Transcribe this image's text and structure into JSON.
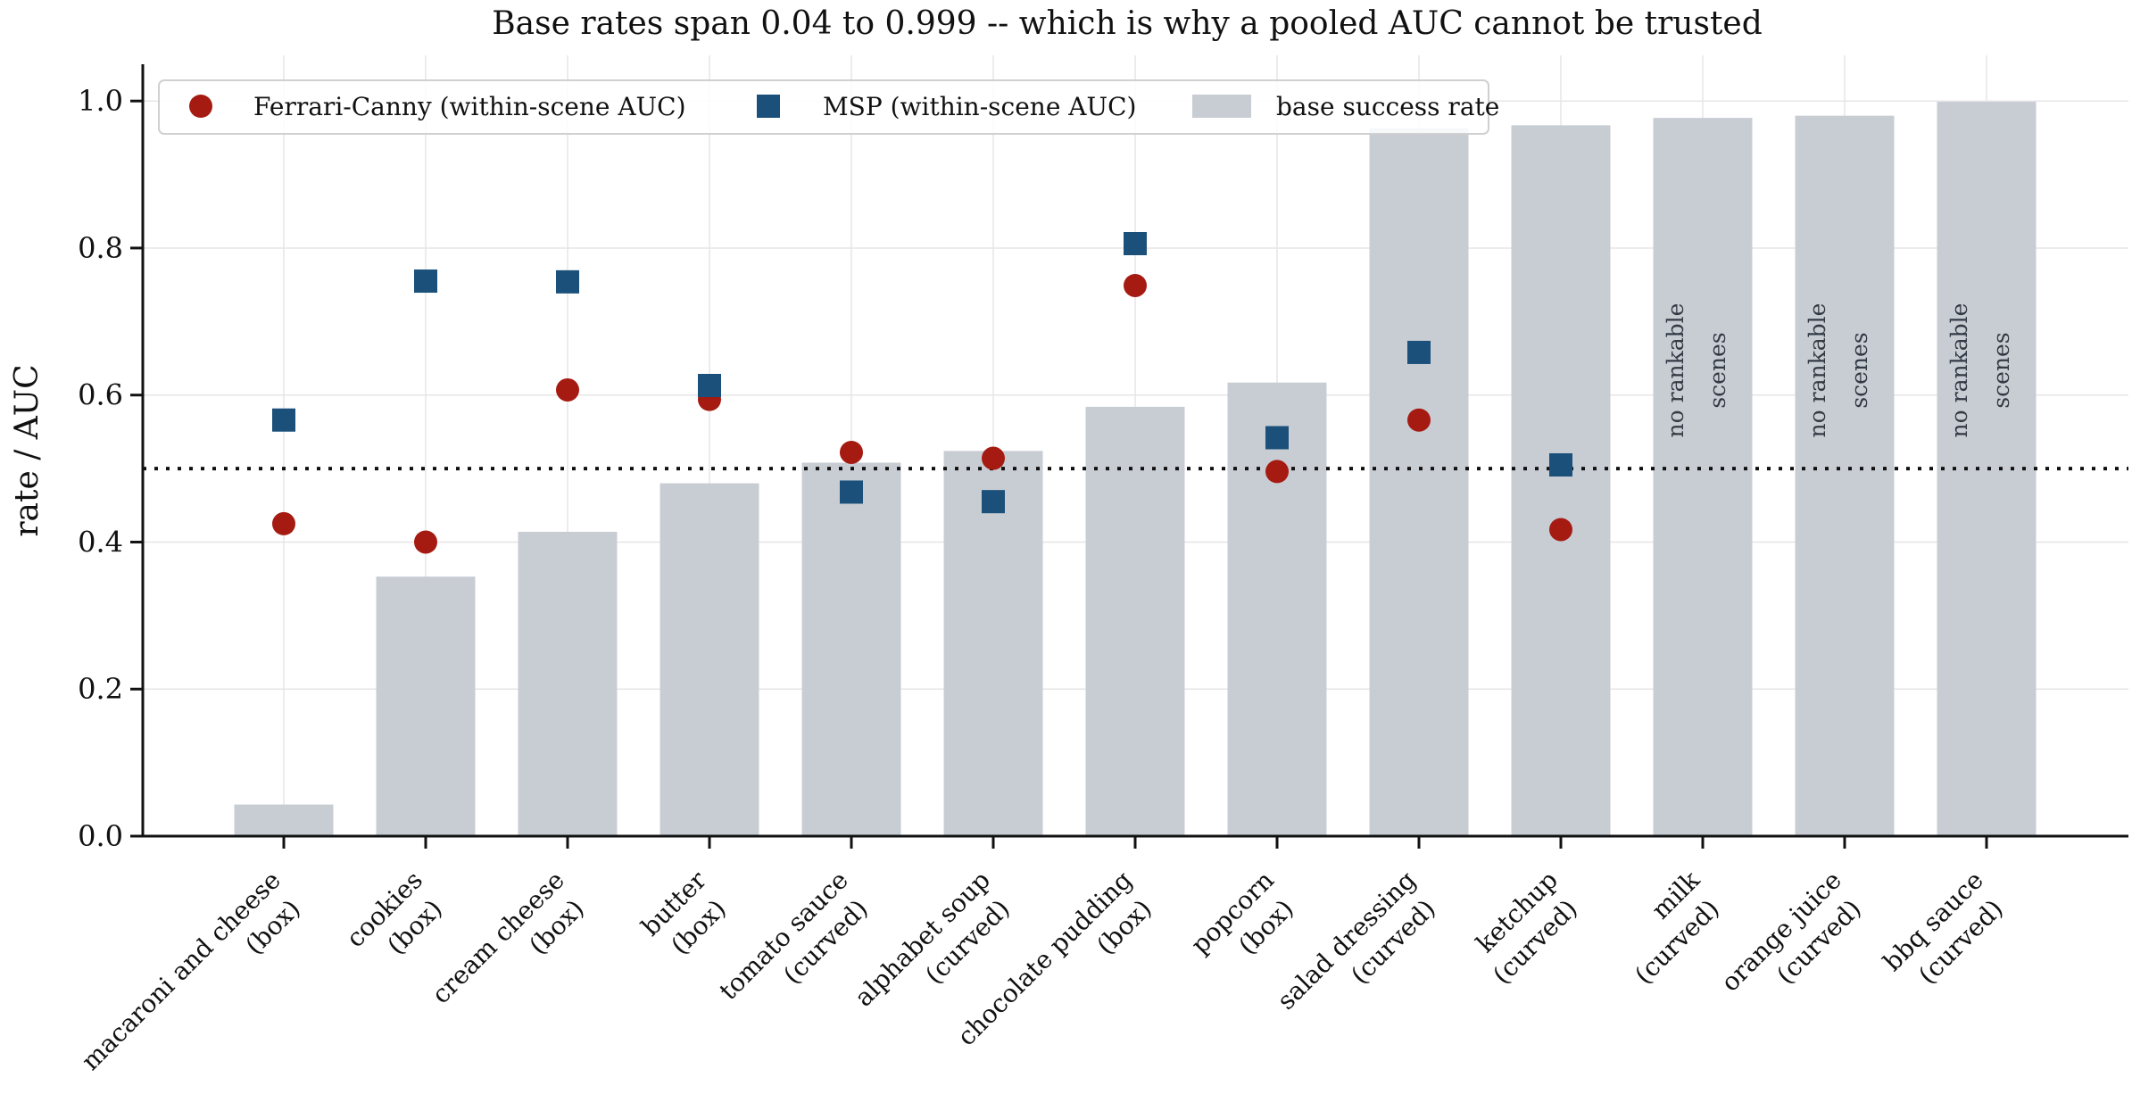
{
  "chart_data": {
    "type": "bar",
    "title": "Base rates span 0.04 to 0.999 -- which is why a pooled AUC cannot be trusted",
    "xlabel": "",
    "ylabel": "rate  / AUC",
    "ylim": [
      0.0,
      1.05
    ],
    "yticks": [
      "0.0",
      "0.2",
      "0.4",
      "0.6",
      "0.8",
      "1.0"
    ],
    "grid": true,
    "legend_position": "top-left",
    "reference_line": {
      "y": 0.5,
      "style": "dotted"
    },
    "categories": [
      [
        "macaroni and cheese",
        "(box)"
      ],
      [
        "cookies",
        "(box)"
      ],
      [
        "cream cheese",
        "(box)"
      ],
      [
        "butter",
        "(box)"
      ],
      [
        "tomato sauce",
        "(curved)"
      ],
      [
        "alphabet soup",
        "(curved)"
      ],
      [
        "chocolate pudding",
        "(box)"
      ],
      [
        "popcorn",
        "(box)"
      ],
      [
        "salad dressing",
        "(curved)"
      ],
      [
        "ketchup",
        "(curved)"
      ],
      [
        "milk",
        "(curved)"
      ],
      [
        "orange juice",
        "(curved)"
      ],
      [
        "bbq sauce",
        "(curved)"
      ]
    ],
    "series": [
      {
        "name": "base success rate",
        "kind": "bar",
        "color": "#c8cdd4",
        "values": [
          0.043,
          0.353,
          0.414,
          0.48,
          0.508,
          0.524,
          0.584,
          0.617,
          0.963,
          0.967,
          0.977,
          0.98,
          0.999
        ]
      },
      {
        "name": "Ferrari-Canny (within-scene AUC)",
        "kind": "scatter",
        "marker": "circle",
        "color": "#a51b12",
        "values": [
          0.425,
          0.4,
          0.607,
          0.594,
          0.522,
          0.514,
          0.749,
          0.496,
          0.566,
          0.417,
          null,
          null,
          null
        ]
      },
      {
        "name": "MSP (within-scene AUC)",
        "kind": "scatter",
        "marker": "square",
        "color": "#1a5079",
        "values": [
          0.566,
          0.755,
          0.754,
          0.613,
          0.468,
          0.455,
          0.806,
          0.542,
          0.658,
          0.505,
          null,
          null,
          null
        ]
      }
    ],
    "bar_annotations": [
      {
        "index": 10,
        "lines": [
          "no rankable",
          "scenes"
        ]
      },
      {
        "index": 11,
        "lines": [
          "no rankable",
          "scenes"
        ]
      },
      {
        "index": 12,
        "lines": [
          "no rankable",
          "scenes"
        ]
      }
    ]
  }
}
